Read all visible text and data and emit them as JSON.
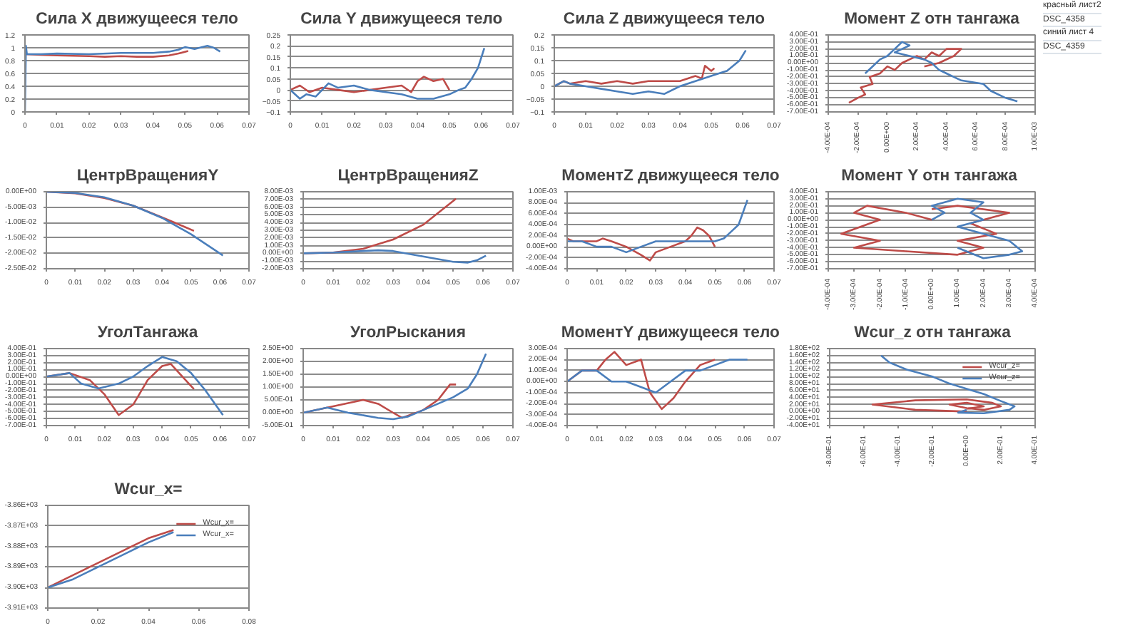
{
  "chart_data": [
    {
      "type": "line",
      "title": "Сила X движущееся тело",
      "xlim": [
        0,
        0.07
      ],
      "xticks": [
        0,
        0.01,
        0.02,
        0.03,
        0.04,
        0.05,
        0.06,
        0.07
      ],
      "ylim": [
        0,
        1.2
      ],
      "yticks": [
        0,
        0.2,
        0.4,
        0.6,
        0.8,
        1,
        1.2
      ],
      "grid": "y",
      "series": [
        {
          "color": "#be4b48",
          "x": [
            0,
            0.005,
            0.01,
            0.02,
            0.025,
            0.03,
            0.035,
            0.04,
            0.045,
            0.048,
            0.051
          ],
          "values": [
            0.9,
            0.89,
            0.88,
            0.87,
            0.86,
            0.87,
            0.86,
            0.86,
            0.88,
            0.91,
            0.95
          ]
        },
        {
          "color": "#4a7ebb",
          "x": [
            0,
            0.0003,
            0.0006,
            0.005,
            0.01,
            0.02,
            0.03,
            0.04,
            0.045,
            0.048,
            0.05,
            0.053,
            0.057,
            0.059,
            0.061
          ],
          "values": [
            0,
            1.03,
            0.9,
            0.9,
            0.91,
            0.9,
            0.92,
            0.92,
            0.94,
            0.97,
            1.01,
            0.98,
            1.03,
            1,
            0.94
          ]
        }
      ]
    },
    {
      "type": "line",
      "title": "Сила Y движущееся тело",
      "xlim": [
        0,
        0.07
      ],
      "xticks": [
        0,
        0.01,
        0.02,
        0.03,
        0.04,
        0.05,
        0.06,
        0.07
      ],
      "ylim": [
        -0.1,
        0.25
      ],
      "yticks": [
        -0.1,
        -0.05,
        0,
        0.05,
        0.1,
        0.15,
        0.2,
        0.25
      ],
      "grid": "y",
      "series": [
        {
          "color": "#be4b48",
          "x": [
            0,
            0.003,
            0.006,
            0.01,
            0.015,
            0.02,
            0.025,
            0.03,
            0.035,
            0.038,
            0.04,
            0.042,
            0.045,
            0.048,
            0.05
          ],
          "values": [
            0,
            0.02,
            -0.01,
            0.01,
            0,
            -0.01,
            0,
            0.01,
            0.02,
            -0.01,
            0.04,
            0.06,
            0.04,
            0.05,
            0
          ]
        },
        {
          "color": "#4a7ebb",
          "x": [
            0,
            0.003,
            0.005,
            0.008,
            0.012,
            0.015,
            0.02,
            0.025,
            0.03,
            0.035,
            0.04,
            0.045,
            0.05,
            0.053,
            0.055,
            0.057,
            0.059,
            0.061
          ],
          "values": [
            0,
            -0.04,
            -0.02,
            -0.03,
            0.03,
            0.01,
            0.02,
            0,
            -0.01,
            -0.02,
            -0.04,
            -0.04,
            -0.02,
            0,
            0.01,
            0.05,
            0.1,
            0.19
          ]
        }
      ]
    },
    {
      "type": "line",
      "title": "Сила Z движущееся тело",
      "xlim": [
        0,
        0.07
      ],
      "xticks": [
        0,
        0.01,
        0.02,
        0.03,
        0.04,
        0.05,
        0.06,
        0.07
      ],
      "ylim": [
        -0.1,
        0.2
      ],
      "yticks": [
        -0.1,
        -0.05,
        0,
        0.05,
        0.1,
        0.15,
        0.2
      ],
      "grid": "y",
      "series": [
        {
          "color": "#be4b48",
          "x": [
            0,
            0.003,
            0.005,
            0.01,
            0.015,
            0.02,
            0.025,
            0.03,
            0.035,
            0.04,
            0.045,
            0.047,
            0.048,
            0.05,
            0.051
          ],
          "values": [
            0,
            0.02,
            0.01,
            0.02,
            0.01,
            0.02,
            0.01,
            0.02,
            0.02,
            0.02,
            0.04,
            0.03,
            0.08,
            0.06,
            0.07
          ]
        },
        {
          "color": "#4a7ebb",
          "x": [
            0,
            0.003,
            0.005,
            0.01,
            0.015,
            0.02,
            0.025,
            0.03,
            0.035,
            0.04,
            0.045,
            0.05,
            0.055,
            0.057,
            0.059,
            0.061
          ],
          "values": [
            0,
            0.02,
            0.01,
            0,
            -0.01,
            -0.02,
            -0.03,
            -0.02,
            -0.03,
            0,
            0.02,
            0.04,
            0.06,
            0.08,
            0.1,
            0.14
          ]
        }
      ]
    },
    {
      "type": "line",
      "title": "Момент Z отн тангажа",
      "xlim": [
        -0.0004,
        0.001
      ],
      "xticks": [
        {
          "value": -0.0004,
          "label": "-4.00E-04"
        },
        {
          "value": -0.0002,
          "label": "-2.00E-04"
        },
        {
          "value": 0,
          "label": "0.00E+00"
        },
        {
          "value": 0.0002,
          "label": "2.00E-04"
        },
        {
          "value": 0.0004,
          "label": "4.00E-04"
        },
        {
          "value": 0.0006,
          "label": "6.00E-04"
        },
        {
          "value": 0.0008,
          "label": "8.00E-04"
        },
        {
          "value": 0.001,
          "label": "1.00E-03"
        }
      ],
      "ylim": [
        -0.7,
        0.4
      ],
      "yticks": [
        {
          "value": 0.4,
          "label": "4.00E-01"
        },
        {
          "value": 0.3,
          "label": "3.00E-01"
        },
        {
          "value": 0.2,
          "label": "2.00E-01"
        },
        {
          "value": 0.1,
          "label": "1.00E-01"
        },
        {
          "value": 0,
          "label": "0.00E+00"
        },
        {
          "value": -0.1,
          "label": "-1.00E-01"
        },
        {
          "value": -0.2,
          "label": "-2.00E-01"
        },
        {
          "value": -0.3,
          "label": "-3.00E-01"
        },
        {
          "value": -0.4,
          "label": "-4.00E-01"
        },
        {
          "value": -0.5,
          "label": "-5.00E-01"
        },
        {
          "value": -0.6,
          "label": "-6.00E-01"
        },
        {
          "value": -0.7,
          "label": "-7.00E-01"
        }
      ],
      "grid": "y",
      "series": [
        {
          "color": "#be4b48",
          "x": [
            -0.00026,
            -0.0002,
            -0.00015,
            -0.00018,
            -0.0001,
            -0.00012,
            -5e-05,
            0,
            5e-05,
            0.0001,
            0.00015,
            0.0002,
            0.00025,
            0.0003,
            0.00035,
            0.0004,
            0.0005,
            0.00045,
            0.00035,
            0.00025
          ],
          "values": [
            -0.57,
            -0.5,
            -0.45,
            -0.35,
            -0.3,
            -0.2,
            -0.15,
            -0.05,
            -0.1,
            0,
            0.05,
            0.1,
            0.05,
            0.15,
            0.1,
            0.2,
            0.2,
            0.1,
            0,
            -0.05
          ]
        },
        {
          "color": "#4a7ebb",
          "x": [
            -0.00015,
            -0.0001,
            -5e-05,
            0,
            5e-05,
            0.0001,
            0.00015,
            5e-05,
            0.00015,
            0.00025,
            0.0003,
            0.00035,
            0.0004,
            0.0005,
            0.00065,
            0.0007,
            0.0008,
            0.00088
          ],
          "values": [
            -0.15,
            -0.05,
            0.05,
            0.1,
            0.2,
            0.3,
            0.25,
            0.15,
            0.1,
            0.05,
            0,
            -0.1,
            -0.15,
            -0.25,
            -0.3,
            -0.4,
            -0.5,
            -0.55
          ]
        }
      ]
    },
    {
      "type": "other",
      "annotations": [
        "красный лист2",
        "DSC_4358",
        "синий лист 4",
        "DSC_4359"
      ]
    },
    {
      "type": "line",
      "title": "ЦентрВращенияY",
      "xlim": [
        0,
        0.07
      ],
      "xticks": [
        0,
        0.01,
        0.02,
        0.03,
        0.04,
        0.05,
        0.06,
        0.07
      ],
      "ylim": [
        -0.025,
        0
      ],
      "yticks": [
        {
          "value": 0,
          "label": "0.00E+00"
        },
        {
          "value": -0.005,
          "label": "-5.00E-03"
        },
        {
          "value": -0.01,
          "label": "-1.00E-02"
        },
        {
          "value": -0.015,
          "label": "-1.50E-02"
        },
        {
          "value": -0.02,
          "label": "-2.00E-02"
        },
        {
          "value": -0.025,
          "label": "-2.50E-02"
        }
      ],
      "grid": "y",
      "series": [
        {
          "color": "#be4b48",
          "x": [
            0,
            0.01,
            0.02,
            0.03,
            0.04,
            0.045,
            0.051
          ],
          "values": [
            0,
            -0.0005,
            -0.002,
            -0.0045,
            -0.0083,
            -0.0103,
            -0.0127
          ]
        },
        {
          "color": "#4a7ebb",
          "x": [
            0,
            0.01,
            0.02,
            0.03,
            0.04,
            0.05,
            0.061
          ],
          "values": [
            0,
            -0.0004,
            -0.0018,
            -0.0045,
            -0.0085,
            -0.0138,
            -0.0207
          ]
        }
      ]
    },
    {
      "type": "line",
      "title": "ЦентрВращенияZ",
      "xlim": [
        0,
        0.07
      ],
      "xticks": [
        0,
        0.01,
        0.02,
        0.03,
        0.04,
        0.05,
        0.06,
        0.07
      ],
      "ylim": [
        -0.002,
        0.008
      ],
      "yticks": [
        {
          "value": 0.008,
          "label": "8.00E-03"
        },
        {
          "value": 0.007,
          "label": "7.00E-03"
        },
        {
          "value": 0.006,
          "label": "6.00E-03"
        },
        {
          "value": 0.005,
          "label": "5.00E-03"
        },
        {
          "value": 0.004,
          "label": "4.00E-03"
        },
        {
          "value": 0.003,
          "label": "3.00E-03"
        },
        {
          "value": 0.002,
          "label": "2.00E-03"
        },
        {
          "value": 0.001,
          "label": "1.00E-03"
        },
        {
          "value": 0,
          "label": "0.00E+00"
        },
        {
          "value": -0.001,
          "label": "-1.00E-03"
        },
        {
          "value": -0.002,
          "label": "-2.00E-03"
        }
      ],
      "grid": "y",
      "series": [
        {
          "color": "#be4b48",
          "x": [
            0,
            0.01,
            0.02,
            0.03,
            0.04,
            0.051
          ],
          "values": [
            0,
            0.0001,
            0.0006,
            0.0018,
            0.0037,
            0.0071
          ]
        },
        {
          "color": "#4a7ebb",
          "x": [
            0,
            0.01,
            0.02,
            0.025,
            0.03,
            0.04,
            0.05,
            0.055,
            0.058,
            0.061
          ],
          "values": [
            0,
            0.0001,
            0.0003,
            0.0004,
            0.0003,
            -0.0004,
            -0.0011,
            -0.0012,
            -0.0009,
            -0.0003
          ]
        }
      ]
    },
    {
      "type": "line",
      "title": "МоментZ движущееся тело",
      "xlim": [
        0,
        0.07
      ],
      "xticks": [
        0,
        0.01,
        0.02,
        0.03,
        0.04,
        0.05,
        0.06,
        0.07
      ],
      "ylim": [
        -0.0004,
        0.001
      ],
      "yticks": [
        {
          "value": 0.001,
          "label": "1.00E-03"
        },
        {
          "value": 0.0008,
          "label": "8.00E-04"
        },
        {
          "value": 0.0006,
          "label": "6.00E-04"
        },
        {
          "value": 0.0004,
          "label": "4.00E-04"
        },
        {
          "value": 0.0002,
          "label": "2.00E-04"
        },
        {
          "value": 0,
          "label": "0.00E+00"
        },
        {
          "value": -0.0002,
          "label": "-2.00E-04"
        },
        {
          "value": -0.0004,
          "label": "-4.00E-04"
        }
      ],
      "grid": "y",
      "series": [
        {
          "color": "#be4b48",
          "x": [
            0,
            0.002,
            0.005,
            0.01,
            0.012,
            0.015,
            0.02,
            0.025,
            0.028,
            0.03,
            0.035,
            0.04,
            0.042,
            0.044,
            0.046,
            0.048,
            0.05
          ],
          "values": [
            0.00015,
            0.0001,
            0.0001,
            0.0001,
            0.00015,
            0.0001,
            0,
            -0.00015,
            -0.00025,
            -0.0001,
            0,
            0.0001,
            0.0002,
            0.00035,
            0.0003,
            0.0002,
            0
          ]
        },
        {
          "color": "#4a7ebb",
          "x": [
            0,
            0.005,
            0.01,
            0.015,
            0.02,
            0.025,
            0.03,
            0.035,
            0.04,
            0.045,
            0.05,
            0.053,
            0.055,
            0.058,
            0.061
          ],
          "values": [
            0.0001,
            0.0001,
            0,
            0,
            -0.0001,
            0,
            0.0001,
            0.0001,
            0.0001,
            0.0001,
            0.0001,
            0.00015,
            0.00025,
            0.0004,
            0.00085
          ]
        }
      ]
    },
    {
      "type": "line",
      "title": "Момент Y  отн тангажа",
      "xlim": [
        -0.0004,
        0.0004
      ],
      "xticks": [
        {
          "value": -0.0004,
          "label": "-4.00E-04"
        },
        {
          "value": -0.0003,
          "label": "-3.00E-04"
        },
        {
          "value": -0.0002,
          "label": "-2.00E-04"
        },
        {
          "value": -0.0001,
          "label": "-1.00E-04"
        },
        {
          "value": 0,
          "label": "0.00E+00"
        },
        {
          "value": 0.0001,
          "label": "1.00E-04"
        },
        {
          "value": 0.0002,
          "label": "2.00E-04"
        },
        {
          "value": 0.0003,
          "label": "3.00E-04"
        },
        {
          "value": 0.0004,
          "label": "4.00E-04"
        }
      ],
      "ylim": [
        -0.7,
        0.4
      ],
      "yticks": [
        {
          "value": 0.4,
          "label": "4.00E-01"
        },
        {
          "value": 0.3,
          "label": "3.00E-01"
        },
        {
          "value": 0.2,
          "label": "2.00E-01"
        },
        {
          "value": 0.1,
          "label": "1.00E-01"
        },
        {
          "value": 0,
          "label": "0.00E+00"
        },
        {
          "value": -0.1,
          "label": "-1.00E-01"
        },
        {
          "value": -0.2,
          "label": "-2.00E-01"
        },
        {
          "value": -0.3,
          "label": "-3.00E-01"
        },
        {
          "value": -0.4,
          "label": "-4.00E-01"
        },
        {
          "value": -0.5,
          "label": "-5.00E-01"
        },
        {
          "value": -0.6,
          "label": "-6.00E-01"
        },
        {
          "value": -0.7,
          "label": "-7.00E-01"
        }
      ],
      "grid": "y",
      "series": [
        {
          "color": "#be4b48",
          "x": [
            0,
            -0.0001,
            -0.00025,
            -0.0003,
            -0.0002,
            -0.00035,
            -0.0002,
            -0.0003,
            -0.0001,
            0.0001,
            0.0002,
            0.0001,
            0.00025,
            0.00015,
            0.0003,
            0.0001,
            0
          ],
          "values": [
            0,
            0.1,
            0.2,
            0.1,
            0,
            -0.2,
            -0.3,
            -0.4,
            -0.45,
            -0.5,
            -0.4,
            -0.3,
            -0.2,
            -0.05,
            0.1,
            0.2,
            0.15
          ]
        },
        {
          "color": "#4a7ebb",
          "x": [
            0,
            5e-05,
            0,
            0.0001,
            0.0002,
            0.00015,
            0.0002,
            0.0001,
            0.0002,
            0.0003,
            0.00035,
            0.0003,
            0.0002,
            0.0001
          ],
          "values": [
            0,
            0.1,
            0.2,
            0.3,
            0.25,
            0.1,
            0,
            -0.1,
            -0.2,
            -0.3,
            -0.45,
            -0.5,
            -0.55,
            -0.4
          ]
        }
      ]
    },
    {
      "type": "line",
      "title": "УголТангажа",
      "xlim": [
        0,
        0.07
      ],
      "xticks": [
        0,
        0.01,
        0.02,
        0.03,
        0.04,
        0.05,
        0.06,
        0.07
      ],
      "ylim": [
        -0.7,
        0.4
      ],
      "yticks": [
        {
          "value": 0.4,
          "label": "4.00E-01"
        },
        {
          "value": 0.3,
          "label": "3.00E-01"
        },
        {
          "value": 0.2,
          "label": "2.00E-01"
        },
        {
          "value": 0.1,
          "label": "1.00E-01"
        },
        {
          "value": 0,
          "label": "0.00E+00"
        },
        {
          "value": -0.1,
          "label": "-1.00E-01"
        },
        {
          "value": -0.2,
          "label": "-2.00E-01"
        },
        {
          "value": -0.3,
          "label": "-3.00E-01"
        },
        {
          "value": -0.4,
          "label": "-4.00E-01"
        },
        {
          "value": -0.5,
          "label": "-5.00E-01"
        },
        {
          "value": -0.6,
          "label": "-6.00E-01"
        },
        {
          "value": -0.7,
          "label": "-7.00E-01"
        }
      ],
      "grid": "y",
      "series": [
        {
          "color": "#be4b48",
          "x": [
            0,
            0.008,
            0.015,
            0.02,
            0.025,
            0.03,
            0.035,
            0.04,
            0.043,
            0.047,
            0.051
          ],
          "values": [
            0,
            0.05,
            -0.05,
            -0.25,
            -0.55,
            -0.4,
            -0.05,
            0.15,
            0.18,
            0,
            -0.18
          ]
        },
        {
          "color": "#4a7ebb",
          "x": [
            0,
            0.008,
            0.012,
            0.018,
            0.025,
            0.03,
            0.035,
            0.04,
            0.045,
            0.05,
            0.055,
            0.061
          ],
          "values": [
            0,
            0.05,
            -0.1,
            -0.17,
            -0.1,
            0,
            0.15,
            0.28,
            0.22,
            0.05,
            -0.2,
            -0.55
          ]
        }
      ]
    },
    {
      "type": "line",
      "title": "УголРыскания",
      "xlim": [
        0,
        0.07
      ],
      "xticks": [
        0,
        0.01,
        0.02,
        0.03,
        0.04,
        0.05,
        0.06,
        0.07
      ],
      "ylim": [
        -0.5,
        2.5
      ],
      "yticks": [
        {
          "value": 2.5,
          "label": "2.50E+00"
        },
        {
          "value": 2,
          "label": "2.00E+00"
        },
        {
          "value": 1.5,
          "label": "1.50E+00"
        },
        {
          "value": 1,
          "label": "1.00E+00"
        },
        {
          "value": 0.5,
          "label": "5.00E-01"
        },
        {
          "value": 0,
          "label": "0.00E+00"
        },
        {
          "value": -0.5,
          "label": "-5.00E-01"
        }
      ],
      "grid": "y",
      "series": [
        {
          "color": "#be4b48",
          "x": [
            0,
            0.01,
            0.02,
            0.025,
            0.03,
            0.033,
            0.04,
            0.045,
            0.049,
            0.051
          ],
          "values": [
            0,
            0.25,
            0.5,
            0.35,
            0,
            -0.2,
            0.1,
            0.5,
            1.1,
            1.1
          ]
        },
        {
          "color": "#4a7ebb",
          "x": [
            0,
            0.008,
            0.015,
            0.025,
            0.03,
            0.035,
            0.04,
            0.05,
            0.055,
            0.058,
            0.061
          ],
          "values": [
            0,
            0.2,
            0,
            -0.2,
            -0.25,
            -0.15,
            0.1,
            0.6,
            0.95,
            1.5,
            2.3
          ]
        }
      ]
    },
    {
      "type": "line",
      "title": "МоментY движущееся тело",
      "xlim": [
        0,
        0.07
      ],
      "xticks": [
        0,
        0.01,
        0.02,
        0.03,
        0.04,
        0.05,
        0.06,
        0.07
      ],
      "ylim": [
        -0.0004,
        0.0003
      ],
      "yticks": [
        {
          "value": 0.0003,
          "label": "3.00E-04"
        },
        {
          "value": 0.0002,
          "label": "2.00E-04"
        },
        {
          "value": 0.0001,
          "label": "1.00E-04"
        },
        {
          "value": 0,
          "label": "0.00E+00"
        },
        {
          "value": -0.0001,
          "label": "-1.00E-04"
        },
        {
          "value": -0.0002,
          "label": "-2.00E-04"
        },
        {
          "value": -0.0003,
          "label": "-3.00E-04"
        },
        {
          "value": -0.0004,
          "label": "-4.00E-04"
        }
      ],
      "grid": "y",
      "series": [
        {
          "color": "#be4b48",
          "x": [
            0,
            0.005,
            0.01,
            0.013,
            0.016,
            0.02,
            0.025,
            0.028,
            0.032,
            0.036,
            0.04,
            0.045,
            0.05
          ],
          "values": [
            0,
            0.0001,
            0.0001,
            0.0002,
            0.00027,
            0.00015,
            0.0002,
            -0.0001,
            -0.00025,
            -0.00015,
            0,
            0.00015,
            0.0002
          ]
        },
        {
          "color": "#4a7ebb",
          "x": [
            0,
            0.005,
            0.01,
            0.015,
            0.02,
            0.03,
            0.035,
            0.04,
            0.045,
            0.05,
            0.055,
            0.061
          ],
          "values": [
            0,
            0.0001,
            0.0001,
            0,
            0,
            -0.0001,
            0,
            0.0001,
            0.0001,
            0.00015,
            0.0002,
            0.0002
          ]
        }
      ]
    },
    {
      "type": "line",
      "title": "Wcur_z отн тангажа",
      "xlim": [
        -0.8,
        0.4
      ],
      "xticks": [
        {
          "value": -0.8,
          "label": "-8.00E-01"
        },
        {
          "value": -0.6,
          "label": "-6.00E-01"
        },
        {
          "value": -0.4,
          "label": "-4.00E-01"
        },
        {
          "value": -0.2,
          "label": "-2.00E-01"
        },
        {
          "value": 0,
          "label": "0.00E+00"
        },
        {
          "value": 0.2,
          "label": "2.00E-01"
        },
        {
          "value": 0.4,
          "label": "4.00E-01"
        }
      ],
      "ylim": [
        -40,
        180
      ],
      "yticks": [
        {
          "value": 180,
          "label": "1.80E+02"
        },
        {
          "value": 160,
          "label": "1.60E+02"
        },
        {
          "value": 140,
          "label": "1.40E+02"
        },
        {
          "value": 120,
          "label": "1.20E+02"
        },
        {
          "value": 100,
          "label": "1.00E+02"
        },
        {
          "value": 80,
          "label": "8.00E+01"
        },
        {
          "value": 60,
          "label": "6.00E+01"
        },
        {
          "value": 40,
          "label": "4.00E+01"
        },
        {
          "value": 20,
          "label": "2.00E+01"
        },
        {
          "value": 0,
          "label": "0.00E+00"
        },
        {
          "value": -20,
          "label": "-2.00E+01"
        },
        {
          "value": -40,
          "label": "-4.00E+01"
        }
      ],
      "grid": "y",
      "legend": "top right",
      "series": [
        {
          "name": "Wcur_z=",
          "color": "#be4b48",
          "x": [
            0,
            -0.3,
            -0.55,
            -0.3,
            0,
            0.15,
            0.2,
            0.1,
            0,
            -0.1,
            0,
            0.1,
            0
          ],
          "values": [
            0,
            5,
            20,
            32,
            35,
            25,
            15,
            5,
            10,
            20,
            25,
            15,
            8
          ]
        },
        {
          "name": "Wcur_z=",
          "color": "#4a7ebb",
          "x": [
            -0.5,
            -0.45,
            -0.35,
            -0.2,
            -0.1,
            0,
            0.1,
            0.2,
            0.28,
            0.25,
            0.1,
            -0.05,
            0
          ],
          "values": [
            160,
            140,
            120,
            100,
            80,
            65,
            50,
            30,
            15,
            5,
            -5,
            -3,
            5
          ]
        }
      ]
    },
    {
      "type": "line",
      "title": "Wcur_x=",
      "xlim": [
        0,
        0.08
      ],
      "xticks": [
        0,
        0.02,
        0.04,
        0.06,
        0.08
      ],
      "ylim": [
        -3910,
        -3860
      ],
      "yticks": [
        {
          "value": -3860,
          "label": "-3.86E+03"
        },
        {
          "value": -3870,
          "label": "-3.87E+03"
        },
        {
          "value": -3880,
          "label": "-3.88E+03"
        },
        {
          "value": -3890,
          "label": "-3.89E+03"
        },
        {
          "value": -3900,
          "label": "-3.90E+03"
        },
        {
          "value": -3910,
          "label": "-3.91E+03"
        }
      ],
      "grid": "y",
      "legend": "top right",
      "series": [
        {
          "name": "Wcur_x=",
          "color": "#be4b48",
          "x": [
            0,
            0.01,
            0.02,
            0.03,
            0.04,
            0.05
          ],
          "values": [
            -3900,
            -3894,
            -3888,
            -3882,
            -3876,
            -3872
          ]
        },
        {
          "name": "Wcur_x=",
          "color": "#4a7ebb",
          "x": [
            0,
            0.01,
            0.02,
            0.03,
            0.04,
            0.05
          ],
          "values": [
            -3900,
            -3896,
            -3890,
            -3884,
            -3878,
            -3873
          ]
        }
      ]
    }
  ]
}
